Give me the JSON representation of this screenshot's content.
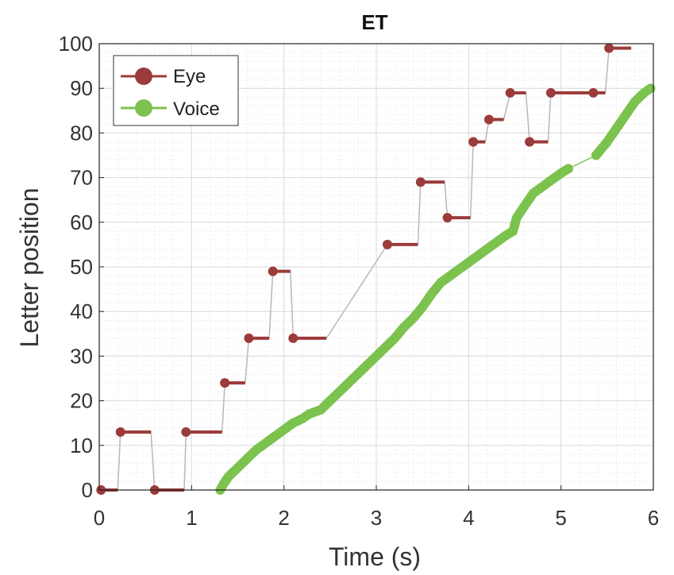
{
  "chart_data": {
    "type": "line",
    "title": "ET",
    "xlabel": "Time (s)",
    "ylabel": "Letter position",
    "xlim": [
      0,
      6
    ],
    "ylim": [
      0,
      100
    ],
    "xticks": [
      "0",
      "1",
      "2",
      "3",
      "4",
      "5",
      "6"
    ],
    "yticks": [
      "0",
      "10",
      "20",
      "30",
      "40",
      "50",
      "60",
      "70",
      "80",
      "90",
      "100"
    ],
    "grid": true,
    "legend_position": "top-left",
    "colors": {
      "eye": "#9c3b3b",
      "voice": "#7cc24e",
      "connector": "#b8b8b8"
    },
    "series": [
      {
        "name": "Eye",
        "style": "fixation-segments",
        "segments": [
          {
            "x0": 0.02,
            "x1": 0.2,
            "y": 0
          },
          {
            "x0": 0.23,
            "x1": 0.56,
            "y": 13
          },
          {
            "x0": 0.6,
            "x1": 0.92,
            "y": 0
          },
          {
            "x0": 0.94,
            "x1": 1.33,
            "y": 13
          },
          {
            "x0": 1.36,
            "x1": 1.58,
            "y": 24
          },
          {
            "x0": 1.62,
            "x1": 1.84,
            "y": 34
          },
          {
            "x0": 1.88,
            "x1": 2.07,
            "y": 49
          },
          {
            "x0": 2.1,
            "x1": 2.46,
            "y": 34
          },
          {
            "x0": 3.12,
            "x1": 3.45,
            "y": 55
          },
          {
            "x0": 3.48,
            "x1": 3.74,
            "y": 69
          },
          {
            "x0": 3.77,
            "x1": 4.02,
            "y": 61
          },
          {
            "x0": 4.05,
            "x1": 4.18,
            "y": 78
          },
          {
            "x0": 4.22,
            "x1": 4.38,
            "y": 83
          },
          {
            "x0": 4.45,
            "x1": 4.62,
            "y": 89
          },
          {
            "x0": 4.66,
            "x1": 4.86,
            "y": 78
          },
          {
            "x0": 4.89,
            "x1": 5.48,
            "y": 89
          },
          {
            "x0": 5.52,
            "x1": 5.76,
            "y": 99
          }
        ],
        "extra_points": [
          {
            "x": 5.35,
            "y": 89
          }
        ]
      },
      {
        "name": "Voice",
        "style": "dense-markers",
        "points": [
          [
            1.31,
            0
          ],
          [
            1.35,
            1.5
          ],
          [
            1.4,
            3
          ],
          [
            1.5,
            5
          ],
          [
            1.6,
            7
          ],
          [
            1.7,
            9
          ],
          [
            1.8,
            10.5
          ],
          [
            1.9,
            12
          ],
          [
            2.0,
            13.5
          ],
          [
            2.1,
            15
          ],
          [
            2.2,
            16
          ],
          [
            2.27,
            17
          ],
          [
            2.4,
            18
          ],
          [
            2.5,
            20
          ],
          [
            2.6,
            22
          ],
          [
            2.7,
            24
          ],
          [
            2.8,
            26
          ],
          [
            2.9,
            28
          ],
          [
            3.0,
            30
          ],
          [
            3.1,
            32
          ],
          [
            3.2,
            34
          ],
          [
            3.3,
            36.5
          ],
          [
            3.4,
            38.5
          ],
          [
            3.5,
            41
          ],
          [
            3.6,
            44
          ],
          [
            3.7,
            46.5
          ],
          [
            3.8,
            48
          ],
          [
            3.9,
            49.5
          ],
          [
            4.0,
            51
          ],
          [
            4.1,
            52.5
          ],
          [
            4.2,
            54
          ],
          [
            4.3,
            55.5
          ],
          [
            4.4,
            57
          ],
          [
            4.48,
            58
          ],
          [
            4.52,
            61
          ],
          [
            4.6,
            63.5
          ],
          [
            4.7,
            66.5
          ],
          [
            4.8,
            68
          ],
          [
            4.9,
            69.5
          ],
          [
            5.0,
            71
          ],
          [
            5.08,
            72
          ],
          [
            5.38,
            75
          ],
          [
            5.5,
            78
          ],
          [
            5.6,
            81
          ],
          [
            5.7,
            84
          ],
          [
            5.8,
            87
          ],
          [
            5.9,
            89
          ],
          [
            5.97,
            90
          ]
        ]
      }
    ]
  }
}
